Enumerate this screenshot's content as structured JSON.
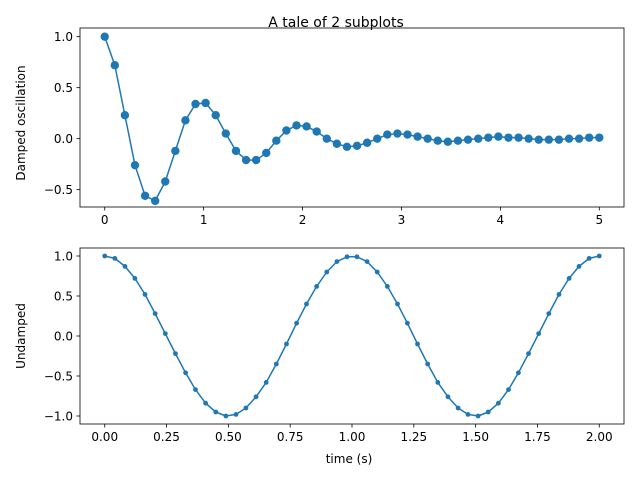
{
  "chart_data": [
    {
      "type": "line",
      "title": "A tale of 2 subplots",
      "xlabel": "",
      "ylabel": "Damped oscillation",
      "xlim": [
        -0.25,
        5.25
      ],
      "ylim": [
        -0.67,
        1.085
      ],
      "xticks": [
        0,
        1,
        2,
        3,
        4,
        5
      ],
      "xtick_labels": [
        "0",
        "1",
        "2",
        "3",
        "4",
        "5"
      ],
      "yticks": [
        -0.5,
        0.0,
        0.5,
        1.0
      ],
      "ytick_labels": [
        "−0.5",
        "0.0",
        "0.5",
        "1.0"
      ],
      "grid": false,
      "legend": "none",
      "marker": "circle",
      "color": "#1f77b4",
      "series": [
        {
          "x": [
            0,
            0.102,
            0.204,
            0.306,
            0.408,
            0.51,
            0.612,
            0.714,
            0.816,
            0.918,
            1.02,
            1.122,
            1.224,
            1.327,
            1.429,
            1.531,
            1.633,
            1.735,
            1.837,
            1.939,
            2.041,
            2.143,
            2.245,
            2.347,
            2.449,
            2.551,
            2.653,
            2.755,
            2.857,
            2.959,
            3.061,
            3.163,
            3.265,
            3.367,
            3.469,
            3.571,
            3.673,
            3.776,
            3.878,
            3.98,
            4.082,
            4.184,
            4.286,
            4.388,
            4.49,
            4.592,
            4.694,
            4.796,
            4.898,
            5.0
          ],
          "y": [
            1.0,
            0.72,
            0.23,
            -0.26,
            -0.56,
            -0.61,
            -0.42,
            -0.12,
            0.18,
            0.34,
            0.35,
            0.23,
            0.05,
            -0.12,
            -0.21,
            -0.21,
            -0.14,
            -0.02,
            0.08,
            0.13,
            0.12,
            0.07,
            0.0,
            -0.05,
            -0.08,
            -0.07,
            -0.04,
            0.0,
            0.04,
            0.05,
            0.04,
            0.02,
            0.0,
            -0.02,
            -0.03,
            -0.02,
            -0.01,
            0.0,
            0.01,
            0.02,
            0.01,
            0.01,
            0.0,
            -0.01,
            -0.01,
            -0.01,
            0.0,
            0.0,
            0.01,
            0.01
          ]
        }
      ]
    },
    {
      "type": "line",
      "title": "",
      "xlabel": "time (s)",
      "ylabel": "Undamped",
      "xlim": [
        -0.1,
        2.1
      ],
      "ylim": [
        -1.1,
        1.1
      ],
      "xticks": [
        0,
        0.25,
        0.5,
        0.75,
        1.0,
        1.25,
        1.5,
        1.75,
        2.0
      ],
      "xtick_labels": [
        "0.00",
        "0.25",
        "0.50",
        "0.75",
        "1.00",
        "1.25",
        "1.50",
        "1.75",
        "2.00"
      ],
      "yticks": [
        -1.0,
        -0.5,
        0.0,
        0.5,
        1.0
      ],
      "ytick_labels": [
        "−1.0",
        "−0.5",
        "0.0",
        "0.5",
        "1.0"
      ],
      "grid": false,
      "legend": "none",
      "marker": "point",
      "color": "#1f77b4",
      "series": [
        {
          "x": [
            0,
            0.041,
            0.082,
            0.122,
            0.163,
            0.204,
            0.245,
            0.286,
            0.327,
            0.367,
            0.408,
            0.449,
            0.49,
            0.531,
            0.571,
            0.612,
            0.653,
            0.694,
            0.735,
            0.776,
            0.816,
            0.857,
            0.898,
            0.939,
            0.98,
            1.02,
            1.061,
            1.102,
            1.143,
            1.184,
            1.224,
            1.265,
            1.306,
            1.347,
            1.388,
            1.429,
            1.469,
            1.51,
            1.551,
            1.592,
            1.633,
            1.673,
            1.714,
            1.755,
            1.796,
            1.837,
            1.878,
            1.918,
            1.959,
            2.0
          ],
          "y": [
            1.0,
            0.97,
            0.87,
            0.72,
            0.52,
            0.28,
            0.03,
            -0.22,
            -0.46,
            -0.67,
            -0.84,
            -0.95,
            -1.0,
            -0.98,
            -0.9,
            -0.76,
            -0.58,
            -0.35,
            -0.1,
            0.16,
            0.4,
            0.62,
            0.8,
            0.93,
            0.99,
            0.99,
            0.93,
            0.8,
            0.62,
            0.4,
            0.16,
            -0.1,
            -0.35,
            -0.58,
            -0.76,
            -0.9,
            -0.98,
            -1.0,
            -0.95,
            -0.84,
            -0.67,
            -0.46,
            -0.22,
            0.03,
            0.28,
            0.52,
            0.72,
            0.87,
            0.97,
            1.0
          ]
        }
      ]
    }
  ]
}
